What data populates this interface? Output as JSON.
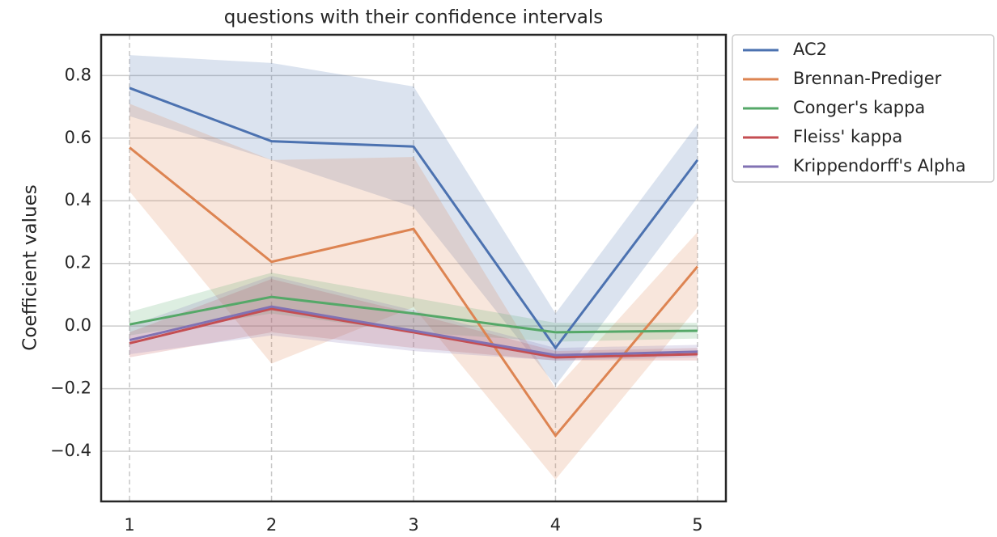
{
  "chart_data": {
    "type": "line",
    "title": "questions with their confidence intervals",
    "ylabel": "Coefficient values",
    "x": [
      1,
      2,
      3,
      4,
      5
    ],
    "xlim": [
      0.8,
      5.2
    ],
    "xticks": [
      1,
      2,
      3,
      4,
      5
    ],
    "ylim": [
      -0.56,
      0.93
    ],
    "yticks": [
      {
        "value": -0.4,
        "label": "−0.4"
      },
      {
        "value": -0.2,
        "label": "−0.2"
      },
      {
        "value": 0,
        "label": "0.0"
      },
      0.2,
      0.4,
      0.6,
      0.8
    ],
    "grid": true,
    "legend": "outside-upper-right",
    "series": [
      {
        "name": "AC2",
        "color": "#4c72b0",
        "values": [
          0.76,
          0.59,
          0.573,
          -0.07,
          0.53
        ],
        "lower": [
          0.67,
          0.53,
          0.38,
          -0.19,
          0.41
        ],
        "upper": [
          0.865,
          0.84,
          0.765,
          0.04,
          0.645
        ]
      },
      {
        "name": "Brennan-Prediger",
        "color": "#dd8452",
        "values": [
          0.57,
          0.205,
          0.31,
          -0.35,
          0.19
        ],
        "lower": [
          0.43,
          -0.12,
          0.06,
          -0.49,
          0.06
        ],
        "upper": [
          0.71,
          0.53,
          0.54,
          -0.2,
          0.3
        ]
      },
      {
        "name": "Conger's kappa",
        "color": "#55a868",
        "values": [
          0.005,
          0.093,
          0.04,
          -0.02,
          -0.015
        ],
        "lower": [
          -0.03,
          0.04,
          -0.02,
          -0.05,
          -0.04
        ],
        "upper": [
          0.045,
          0.17,
          0.09,
          0.01,
          0.01
        ]
      },
      {
        "name": "Fleiss' kappa",
        "color": "#c44e52",
        "values": [
          -0.055,
          0.055,
          -0.02,
          -0.1,
          -0.09
        ],
        "lower": [
          -0.1,
          -0.02,
          -0.07,
          -0.11,
          -0.11
        ],
        "upper": [
          -0.02,
          0.15,
          0.04,
          -0.08,
          -0.07
        ]
      },
      {
        "name": "Krippendorff's Alpha",
        "color": "#8172b3",
        "values": [
          -0.045,
          0.062,
          -0.015,
          -0.093,
          -0.082
        ],
        "lower": [
          -0.09,
          -0.03,
          -0.08,
          -0.11,
          -0.1
        ],
        "upper": [
          0.0,
          0.16,
          0.05,
          -0.07,
          -0.06
        ]
      }
    ]
  }
}
